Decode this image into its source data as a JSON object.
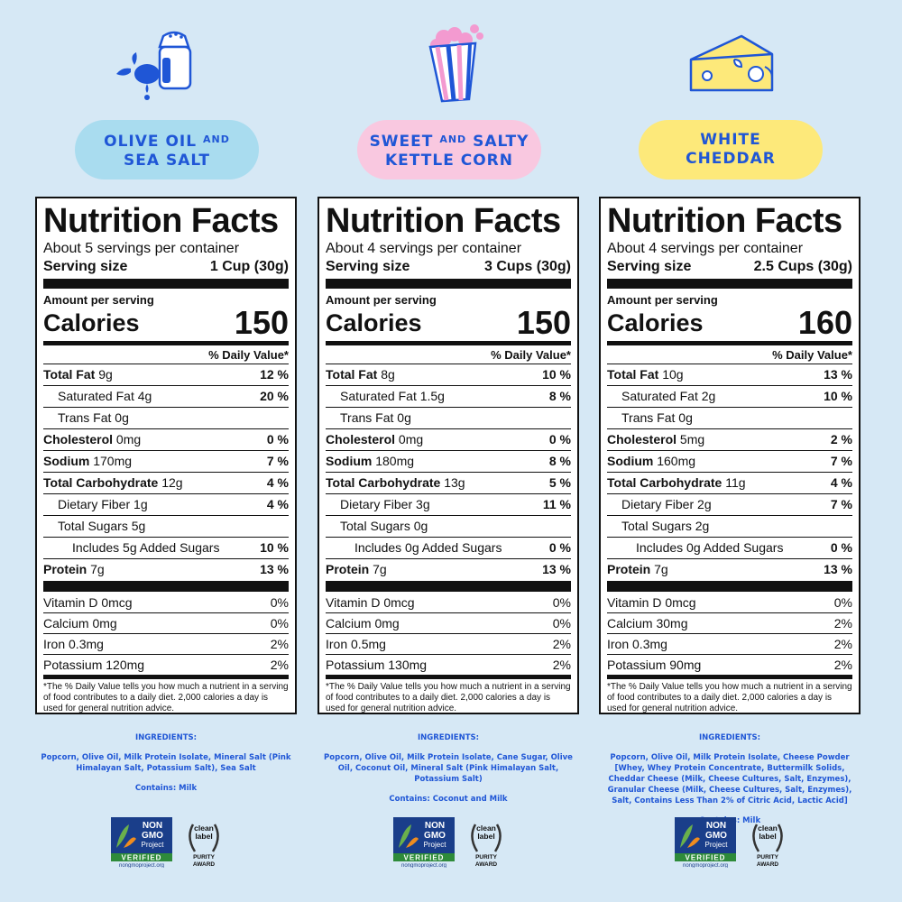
{
  "products": [
    {
      "name_line1": "OLIVE OIL",
      "name_and": "AND",
      "name_line2": "SEA SALT",
      "pill_color": "#a9dcef",
      "nutrition": {
        "title": "Nutrition Facts",
        "servings": "About 5 servings per container",
        "serving_size_label": "Serving size",
        "serving_size": "1 Cup (30g)",
        "amount_per_serving": "Amount per serving",
        "calories_label": "Calories",
        "calories": "150",
        "daily_value_header": "% Daily Value*",
        "nutrients": [
          {
            "label": "Total Fat",
            "amount": "9g",
            "dv": "12 %",
            "bold": true,
            "indent": 0
          },
          {
            "label": "Saturated Fat",
            "amount": "4g",
            "dv": "20 %",
            "bold": false,
            "indent": 1
          },
          {
            "label": "Trans Fat",
            "amount": "0g",
            "dv": "",
            "bold": false,
            "indent": 1
          },
          {
            "label": "Cholesterol",
            "amount": "0mg",
            "dv": "0 %",
            "bold": true,
            "indent": 0
          },
          {
            "label": "Sodium",
            "amount": "170mg",
            "dv": "7 %",
            "bold": true,
            "indent": 0
          },
          {
            "label": "Total Carbohydrate",
            "amount": "12g",
            "dv": "4 %",
            "bold": true,
            "indent": 0
          },
          {
            "label": "Dietary Fiber",
            "amount": "1g",
            "dv": "4 %",
            "bold": false,
            "indent": 1
          },
          {
            "label": "Total Sugars",
            "amount": "5g",
            "dv": "",
            "bold": false,
            "indent": 1
          },
          {
            "label": "Includes 5g Added Sugars",
            "amount": "",
            "dv": "10 %",
            "bold": false,
            "indent": 2
          },
          {
            "label": "Protein",
            "amount": "7g",
            "dv": "13 %",
            "bold": true,
            "indent": 0
          }
        ],
        "vitamins": [
          {
            "label": "Vitamin D 0mcg",
            "dv": "0%"
          },
          {
            "label": "Calcium 0mg",
            "dv": "0%"
          },
          {
            "label": "Iron 0.3mg",
            "dv": "2%"
          },
          {
            "label": "Potassium 120mg",
            "dv": "2%"
          }
        ],
        "footnote": "*The % Daily Value tells you how much a nutrient in a serving of food contributes to a daily diet. 2,000 calories a day is used for general nutrition advice."
      },
      "ingredients_title": "INGREDIENTS:",
      "ingredients": "Popcorn, Olive Oil, Milk Protein Isolate, Mineral Salt (Pink Himalayan Salt, Potassium Salt), Sea Salt",
      "contains": "Contains: Milk"
    },
    {
      "name_line1": "SWEET",
      "name_and": "AND",
      "name_line1b": "SALTY",
      "name_line2": "KETTLE CORN",
      "pill_color": "#f9c8e0",
      "nutrition": {
        "title": "Nutrition Facts",
        "servings": "About 4 servings per container",
        "serving_size_label": "Serving size",
        "serving_size": "3 Cups (30g)",
        "amount_per_serving": "Amount per serving",
        "calories_label": "Calories",
        "calories": "150",
        "daily_value_header": "% Daily Value*",
        "nutrients": [
          {
            "label": "Total Fat",
            "amount": "8g",
            "dv": "10 %",
            "bold": true,
            "indent": 0
          },
          {
            "label": "Saturated Fat",
            "amount": "1.5g",
            "dv": "8 %",
            "bold": false,
            "indent": 1
          },
          {
            "label": "Trans Fat",
            "amount": "0g",
            "dv": "",
            "bold": false,
            "indent": 1
          },
          {
            "label": "Cholesterol",
            "amount": "0mg",
            "dv": "0 %",
            "bold": true,
            "indent": 0
          },
          {
            "label": "Sodium",
            "amount": "180mg",
            "dv": "8 %",
            "bold": true,
            "indent": 0
          },
          {
            "label": "Total Carbohydrate",
            "amount": "13g",
            "dv": "5 %",
            "bold": true,
            "indent": 0
          },
          {
            "label": "Dietary Fiber",
            "amount": "3g",
            "dv": "11 %",
            "bold": false,
            "indent": 1
          },
          {
            "label": "Total Sugars",
            "amount": "0g",
            "dv": "",
            "bold": false,
            "indent": 1
          },
          {
            "label": "Includes 0g Added Sugars",
            "amount": "",
            "dv": "0 %",
            "bold": false,
            "indent": 2
          },
          {
            "label": "Protein",
            "amount": "7g",
            "dv": "13 %",
            "bold": true,
            "indent": 0
          }
        ],
        "vitamins": [
          {
            "label": "Vitamin D 0mcg",
            "dv": "0%"
          },
          {
            "label": "Calcium 0mg",
            "dv": "0%"
          },
          {
            "label": "Iron 0.5mg",
            "dv": "2%"
          },
          {
            "label": "Potassium 130mg",
            "dv": "2%"
          }
        ],
        "footnote": "*The % Daily Value tells you how much a nutrient in a serving of food contributes to a daily diet. 2,000 calories a day is used for general nutrition advice."
      },
      "ingredients_title": "INGREDIENTS:",
      "ingredients": "Popcorn, Olive Oil, Milk Protein Isolate, Cane Sugar, Olive Oil, Coconut Oil, Mineral Salt (Pink Himalayan Salt, Potassium Salt)",
      "contains": "Contains: Coconut and Milk"
    },
    {
      "name_line1": "WHITE",
      "name_line2": "CHEDDAR",
      "pill_color": "#fde97a",
      "nutrition": {
        "title": "Nutrition Facts",
        "servings": "About 4 servings per container",
        "serving_size_label": "Serving size",
        "serving_size": "2.5 Cups (30g)",
        "amount_per_serving": "Amount per serving",
        "calories_label": "Calories",
        "calories": "160",
        "daily_value_header": "% Daily Value*",
        "nutrients": [
          {
            "label": "Total Fat",
            "amount": "10g",
            "dv": "13 %",
            "bold": true,
            "indent": 0
          },
          {
            "label": "Saturated Fat",
            "amount": "2g",
            "dv": "10 %",
            "bold": false,
            "indent": 1
          },
          {
            "label": "Trans Fat",
            "amount": "0g",
            "dv": "",
            "bold": false,
            "indent": 1
          },
          {
            "label": "Cholesterol",
            "amount": "5mg",
            "dv": "2 %",
            "bold": true,
            "indent": 0
          },
          {
            "label": "Sodium",
            "amount": "160mg",
            "dv": "7 %",
            "bold": true,
            "indent": 0
          },
          {
            "label": "Total Carbohydrate",
            "amount": "11g",
            "dv": "4 %",
            "bold": true,
            "indent": 0
          },
          {
            "label": "Dietary Fiber",
            "amount": "2g",
            "dv": "7 %",
            "bold": false,
            "indent": 1
          },
          {
            "label": "Total Sugars",
            "amount": "2g",
            "dv": "",
            "bold": false,
            "indent": 1
          },
          {
            "label": "Includes 0g Added Sugars",
            "amount": "",
            "dv": "0 %",
            "bold": false,
            "indent": 2
          },
          {
            "label": "Protein",
            "amount": "7g",
            "dv": "13 %",
            "bold": true,
            "indent": 0
          }
        ],
        "vitamins": [
          {
            "label": "Vitamin D 0mcg",
            "dv": "0%"
          },
          {
            "label": "Calcium 30mg",
            "dv": "2%"
          },
          {
            "label": "Iron 0.3mg",
            "dv": "2%"
          },
          {
            "label": "Potassium 90mg",
            "dv": "2%"
          }
        ],
        "footnote": "*The % Daily Value tells you how much a nutrient in a serving of food contributes to a daily diet. 2,000 calories a day is used for general nutrition advice."
      },
      "ingredients_title": "INGREDIENTS:",
      "ingredients": "Popcorn, Olive Oil, Milk Protein Isolate, Cheese Powder [Whey, Whey Protein Concentrate, Buttermilk Solids, Cheddar Cheese (Milk, Cheese Cultures, Salt, Enzymes), Granular Cheese (Milk, Cheese Cultures, Salt, Enzymes), Salt, Contains Less Than 2% of Citric Acid, Lactic Acid]",
      "contains": "Contains: Milk"
    }
  ],
  "badges": {
    "non_gmo_lines": [
      "NON",
      "GMO",
      "Project"
    ],
    "non_gmo_verified": "VERIFIED",
    "non_gmo_url": "nongmoproject.org",
    "clean_label_lines": [
      "clean",
      "label"
    ],
    "clean_label_award": [
      "PURITY",
      "AWARD"
    ]
  },
  "icons": [
    "olive-oil-salt-shaker-icon",
    "popcorn-bag-icon",
    "cheese-wedge-icon"
  ],
  "colors": {
    "background": "#d6e8f5",
    "accent_blue": "#1f56d6",
    "pink": "#f39ad0",
    "yellow": "#fde97a"
  }
}
